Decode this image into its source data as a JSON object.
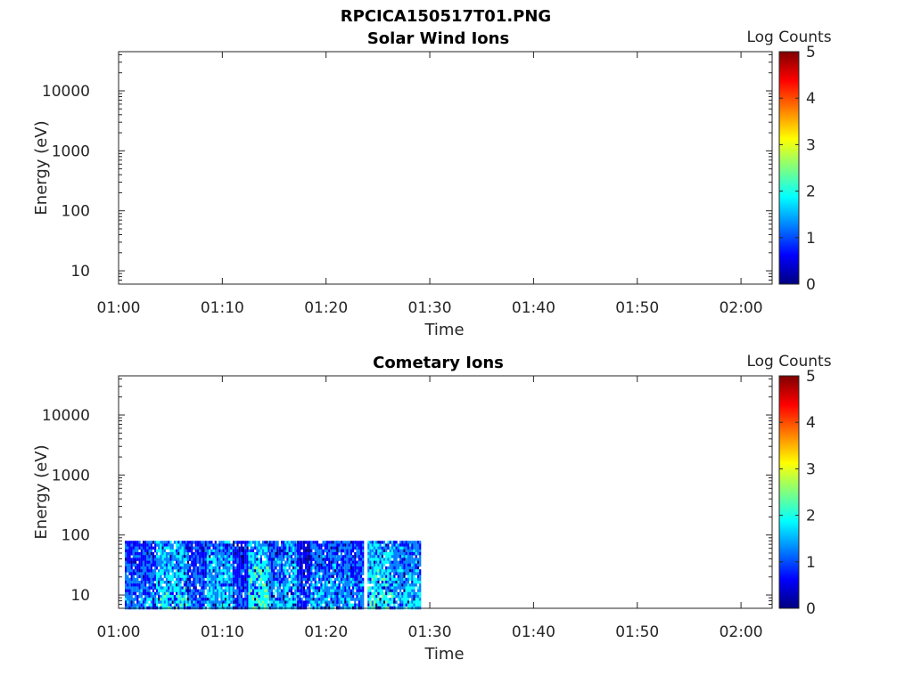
{
  "figure": {
    "title": "RPCICA150517T01.PNG"
  },
  "colors": {
    "colormap": [
      "#00007f",
      "#0000ff",
      "#007fff",
      "#00ffff",
      "#7fff7f",
      "#ffff00",
      "#ff7f00",
      "#ff0000",
      "#7f0000"
    ],
    "axes": "#262626",
    "background": "#ffffff"
  },
  "chart_data": [
    {
      "type": "heatmap",
      "title": "Solar Wind Ions",
      "xlabel": "Time",
      "ylabel": "Energy (eV)",
      "x_ticks": [
        "01:00",
        "01:10",
        "01:20",
        "01:30",
        "01:40",
        "01:50",
        "02:00"
      ],
      "x_range_minutes": [
        0,
        63
      ],
      "y_scale": "log",
      "y_range": [
        6,
        45000
      ],
      "y_ticks": [
        "10",
        "100",
        "1000",
        "10000"
      ],
      "colorbar": {
        "label": "Log Counts",
        "range": [
          0,
          5
        ],
        "ticks": [
          "0",
          "1",
          "2",
          "3",
          "4",
          "5"
        ]
      },
      "data_segments": []
    },
    {
      "type": "heatmap",
      "title": "Cometary Ions",
      "xlabel": "Time",
      "ylabel": "Energy (eV)",
      "x_ticks": [
        "01:00",
        "01:10",
        "01:20",
        "01:30",
        "01:40",
        "01:50",
        "02:00"
      ],
      "x_range_minutes": [
        0,
        63
      ],
      "y_scale": "log",
      "y_range": [
        6,
        45000
      ],
      "y_ticks": [
        "10",
        "100",
        "1000",
        "10000"
      ],
      "colorbar": {
        "label": "Log Counts",
        "range": [
          0,
          5
        ],
        "ticks": [
          "0",
          "1",
          "2",
          "3",
          "4",
          "5"
        ]
      },
      "data_extent": {
        "time_start": "01:00",
        "time_end": "01:29",
        "energy_min_eV": 6,
        "energy_max_eV": 80
      },
      "data_segments": [
        {
          "start_min": 0.6,
          "end_min": 3.6,
          "level": 0.8
        },
        {
          "start_min": 3.6,
          "end_min": 6.6,
          "level": 1.4
        },
        {
          "start_min": 6.6,
          "end_min": 8.5,
          "level": 0.7
        },
        {
          "start_min": 8.5,
          "end_min": 11.0,
          "level": 1.2
        },
        {
          "start_min": 11.0,
          "end_min": 12.5,
          "level": 0.6
        },
        {
          "start_min": 12.5,
          "end_min": 14.5,
          "level": 1.6
        },
        {
          "start_min": 14.5,
          "end_min": 16.0,
          "level": 1.0
        },
        {
          "start_min": 16.0,
          "end_min": 17.2,
          "level": 1.3
        },
        {
          "start_min": 17.2,
          "end_min": 18.5,
          "level": 0.4
        },
        {
          "start_min": 18.5,
          "end_min": 21.0,
          "level": 1.0
        },
        {
          "start_min": 21.0,
          "end_min": 23.5,
          "level": 0.9
        },
        {
          "start_min": 24.0,
          "end_min": 26.5,
          "level": 1.5
        },
        {
          "start_min": 26.5,
          "end_min": 29.1,
          "level": 1.1
        }
      ]
    }
  ]
}
